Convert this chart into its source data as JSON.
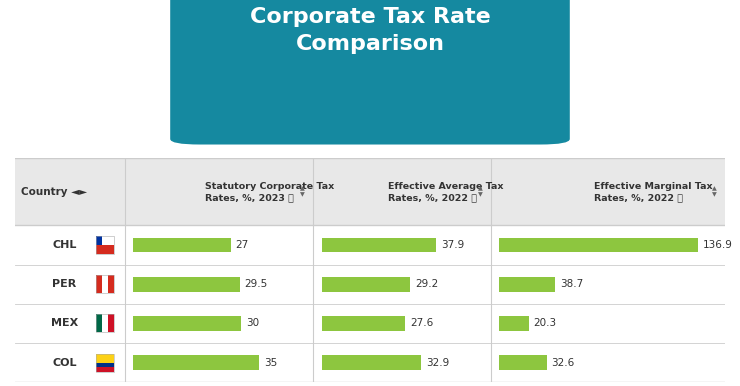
{
  "title": "Corporate Tax Rate\nComparison",
  "title_bg": "#1589a0",
  "light_bg": "#a8d4e0",
  "page_bg": "#ffffff",
  "header_bg": "#e8e8e8",
  "bar_color": "#8dc63f",
  "countries": [
    "CHL",
    "PER",
    "MEX",
    "COL"
  ],
  "col1_header": "Statutory Corporate Tax\nRates, %, 2023 ⓘ",
  "col2_header": "Effective Average Tax\nRates, %, 2022 ⓘ",
  "col3_header": "Effective Marginal Tax\nRates, %, 2022 ⓘ",
  "col1_values": [
    27,
    29.5,
    30,
    35
  ],
  "col2_values": [
    37.9,
    29.2,
    27.6,
    32.9
  ],
  "col3_values": [
    136.9,
    38.7,
    20.3,
    32.6
  ],
  "col1_max": 45,
  "col2_max": 50,
  "col3_max": 150,
  "border_color": "#cccccc",
  "text_color": "#333333",
  "header_text_color": "#333333"
}
